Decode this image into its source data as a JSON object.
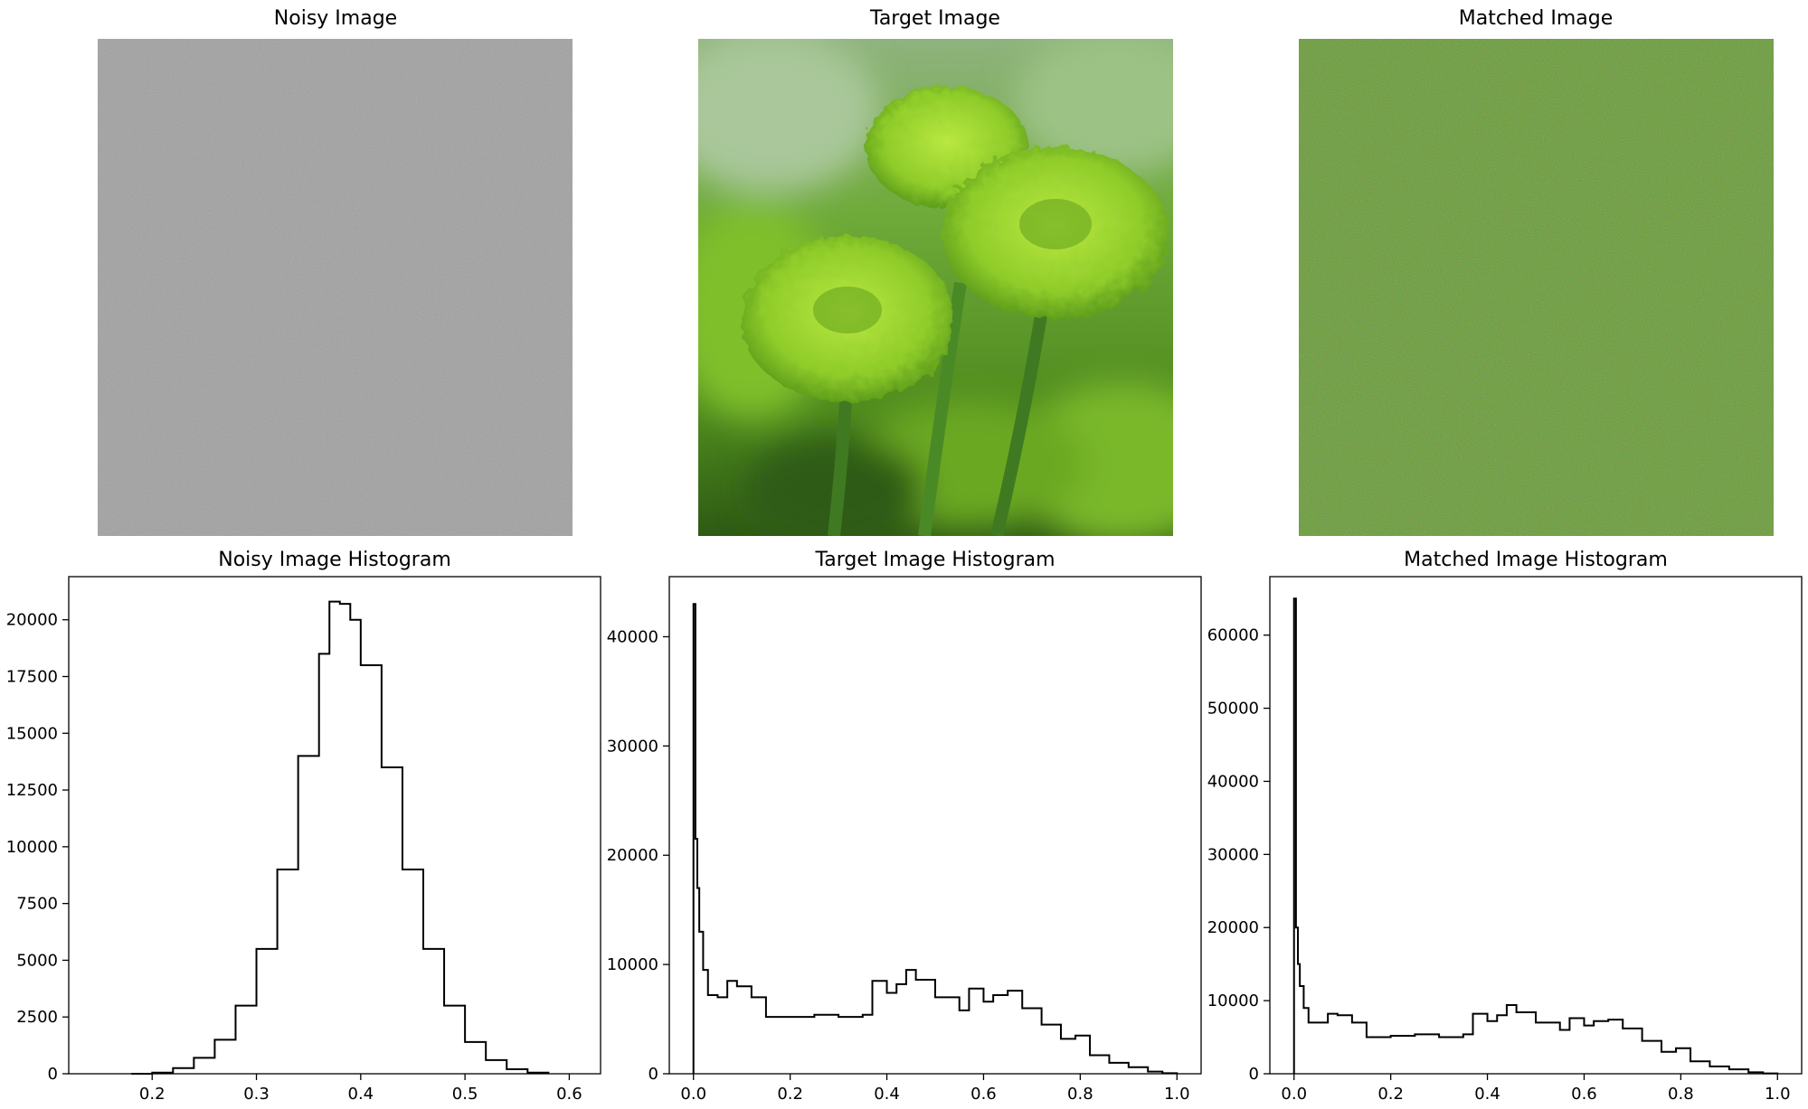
{
  "images": [
    {
      "title": "Noisy Image",
      "icon": "noise-grayscale-image"
    },
    {
      "title": "Target Image",
      "icon": "green-flower-photo"
    },
    {
      "title": "Matched Image",
      "icon": "noise-green-image"
    }
  ],
  "chart_data": [
    {
      "type": "histogram",
      "title": "Noisy Image Histogram",
      "xlabel": "",
      "ylabel": "",
      "xlim": [
        0.12,
        0.63
      ],
      "ylim": [
        0,
        21900
      ],
      "xticks": [
        "0.2",
        "0.3",
        "0.4",
        "0.5",
        "0.6"
      ],
      "yticks": [
        "0",
        "2500",
        "5000",
        "7500",
        "10000",
        "12500",
        "15000",
        "17500",
        "20000"
      ],
      "x": [
        0.18,
        0.2,
        0.22,
        0.24,
        0.26,
        0.28,
        0.3,
        0.32,
        0.34,
        0.36,
        0.37,
        0.38,
        0.39,
        0.4,
        0.42,
        0.44,
        0.46,
        0.48,
        0.5,
        0.52,
        0.54,
        0.56,
        0.58
      ],
      "y": [
        0,
        50,
        250,
        700,
        1500,
        3000,
        5500,
        9000,
        14000,
        18500,
        20800,
        20700,
        20000,
        18000,
        13500,
        9000,
        5500,
        3000,
        1400,
        600,
        200,
        50,
        0
      ]
    },
    {
      "type": "histogram",
      "title": "Target Image Histogram",
      "xlabel": "",
      "ylabel": "",
      "xlim": [
        -0.05,
        1.05
      ],
      "ylim": [
        0,
        45500
      ],
      "xticks": [
        "0.0",
        "0.2",
        "0.4",
        "0.6",
        "0.8",
        "1.0"
      ],
      "yticks": [
        "0",
        "10000",
        "20000",
        "30000",
        "40000"
      ],
      "x": [
        0.0,
        0.004,
        0.008,
        0.012,
        0.02,
        0.03,
        0.05,
        0.07,
        0.09,
        0.12,
        0.15,
        0.2,
        0.25,
        0.3,
        0.35,
        0.37,
        0.4,
        0.42,
        0.44,
        0.46,
        0.5,
        0.55,
        0.57,
        0.6,
        0.62,
        0.65,
        0.68,
        0.72,
        0.76,
        0.79,
        0.82,
        0.86,
        0.9,
        0.94,
        0.97,
        1.0
      ],
      "y": [
        43000,
        21500,
        17000,
        13000,
        9500,
        7200,
        7000,
        8500,
        8000,
        7000,
        5200,
        5200,
        5400,
        5200,
        5400,
        8500,
        7400,
        8200,
        9500,
        8600,
        7000,
        5800,
        7800,
        6600,
        7200,
        7600,
        6000,
        4500,
        3200,
        3500,
        1700,
        1000,
        600,
        200,
        50,
        0
      ]
    },
    {
      "type": "histogram",
      "title": "Matched Image Histogram",
      "xlabel": "",
      "ylabel": "",
      "xlim": [
        -0.05,
        1.05
      ],
      "ylim": [
        0,
        68000
      ],
      "xticks": [
        "0.0",
        "0.2",
        "0.4",
        "0.6",
        "0.8",
        "1.0"
      ],
      "yticks": [
        "0",
        "10000",
        "20000",
        "30000",
        "40000",
        "50000",
        "60000"
      ],
      "x": [
        0.0,
        0.004,
        0.008,
        0.012,
        0.02,
        0.03,
        0.05,
        0.07,
        0.09,
        0.12,
        0.15,
        0.2,
        0.25,
        0.3,
        0.35,
        0.37,
        0.4,
        0.42,
        0.44,
        0.46,
        0.5,
        0.55,
        0.57,
        0.6,
        0.62,
        0.65,
        0.68,
        0.72,
        0.76,
        0.79,
        0.82,
        0.86,
        0.9,
        0.94,
        0.97,
        1.0
      ],
      "y": [
        65000,
        20000,
        15000,
        12000,
        9000,
        7000,
        7000,
        8200,
        8000,
        7000,
        5000,
        5200,
        5400,
        5000,
        5400,
        8200,
        7200,
        8000,
        9400,
        8400,
        7000,
        6000,
        7600,
        6600,
        7200,
        7400,
        6200,
        4500,
        3000,
        3500,
        1700,
        1000,
        600,
        200,
        50,
        0
      ]
    }
  ]
}
